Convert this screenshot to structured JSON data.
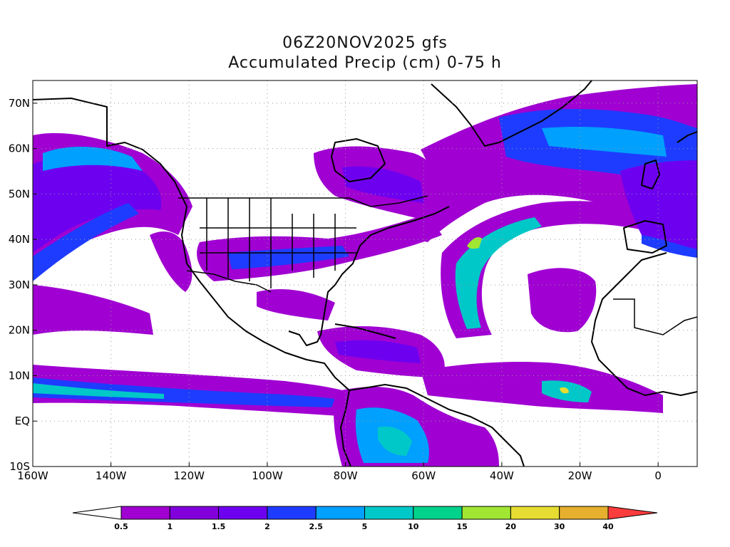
{
  "title": {
    "line1": "06Z20NOV2025 gfs",
    "line2": "Accumulated Precip (cm) 0-75 h"
  },
  "map": {
    "projection": "latlon",
    "lon_range": [
      -160,
      10
    ],
    "lat_range": [
      -10,
      75
    ],
    "grid": true,
    "lat_ticks": [
      {
        "value": 70,
        "label": "70N"
      },
      {
        "value": 60,
        "label": "60N"
      },
      {
        "value": 50,
        "label": "50N"
      },
      {
        "value": 40,
        "label": "40N"
      },
      {
        "value": 30,
        "label": "30N"
      },
      {
        "value": 20,
        "label": "20N"
      },
      {
        "value": 10,
        "label": "10N"
      },
      {
        "value": 0,
        "label": "EQ"
      },
      {
        "value": -10,
        "label": "10S"
      }
    ],
    "lon_ticks": [
      {
        "value": -160,
        "label": "160W"
      },
      {
        "value": -140,
        "label": "140W"
      },
      {
        "value": -120,
        "label": "120W"
      },
      {
        "value": -100,
        "label": "100W"
      },
      {
        "value": -80,
        "label": "80W"
      },
      {
        "value": -60,
        "label": "60W"
      },
      {
        "value": -40,
        "label": "40W"
      },
      {
        "value": -20,
        "label": "20W"
      },
      {
        "value": 0,
        "label": "0"
      }
    ]
  },
  "colorbar": {
    "labels": [
      "0.5",
      "1",
      "1.5",
      "2",
      "2.5",
      "5",
      "10",
      "15",
      "20",
      "30",
      "40"
    ],
    "colors": [
      "#a000d2",
      "#8200dc",
      "#6e00f0",
      "#1e3cff",
      "#00a0ff",
      "#00c8c8",
      "#00d28c",
      "#a0e632",
      "#e6dc32",
      "#e6af2d",
      "#f08228",
      "#fa3c3c"
    ],
    "under_color": "#ffffff"
  }
}
